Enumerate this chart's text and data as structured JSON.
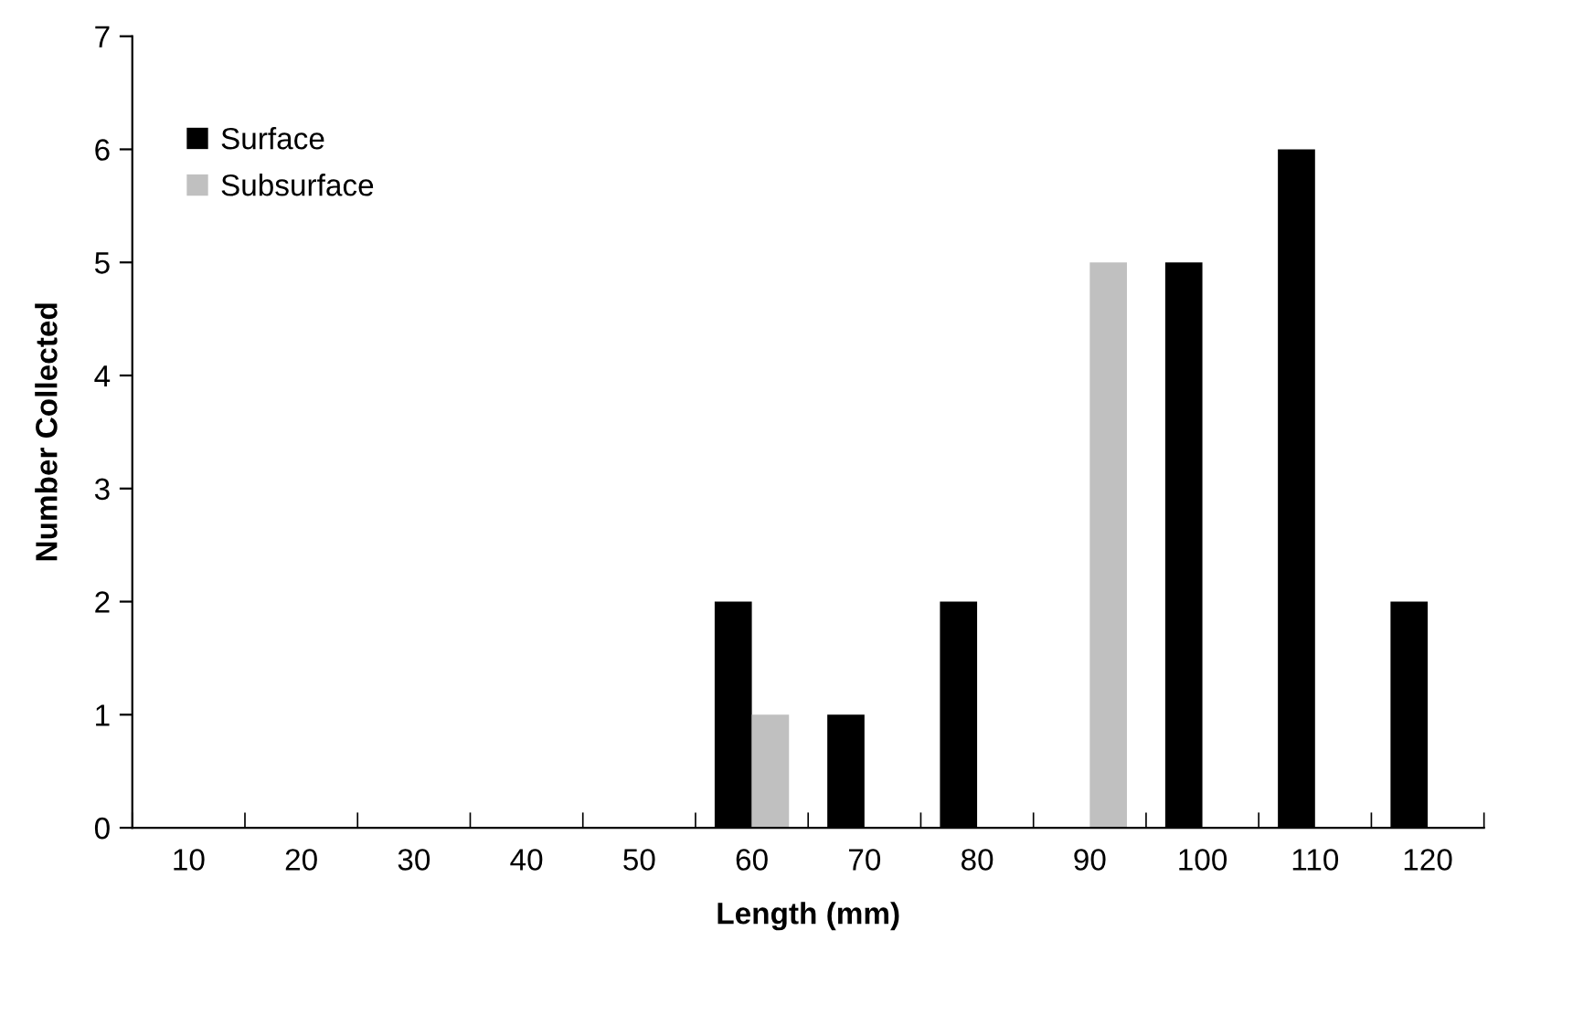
{
  "chart_data": {
    "type": "bar",
    "xlabel": "Length (mm)",
    "ylabel": "Number Collected",
    "categories": [
      "10",
      "20",
      "30",
      "40",
      "50",
      "60",
      "70",
      "80",
      "90",
      "100",
      "110",
      "120"
    ],
    "series": [
      {
        "name": "Surface",
        "color": "#000000",
        "values": [
          0,
          0,
          0,
          0,
          0,
          2,
          1,
          2,
          0,
          5,
          6,
          2
        ]
      },
      {
        "name": "Subsurface",
        "color": "#c0c0c0",
        "values": [
          0,
          0,
          0,
          0,
          0,
          1,
          0,
          0,
          5,
          0,
          0,
          0
        ]
      }
    ],
    "ylim": [
      0,
      7
    ],
    "yticks": [
      0,
      1,
      2,
      3,
      4,
      5,
      6,
      7
    ],
    "grid": false,
    "legend": "top left"
  }
}
